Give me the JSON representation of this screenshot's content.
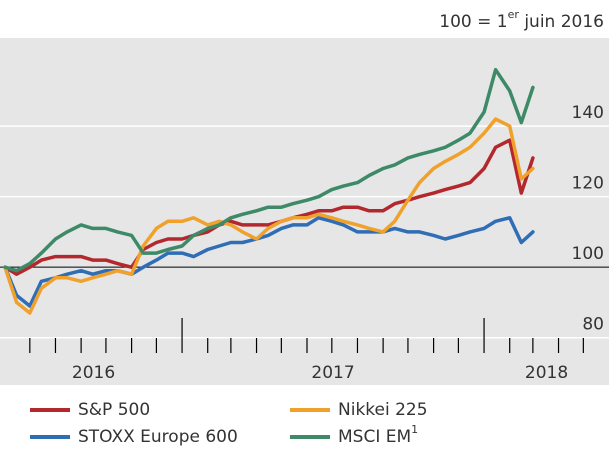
{
  "chart_data": {
    "type": "line",
    "note": [
      "100 = 1",
      "er",
      " juin 2016"
    ],
    "x": [
      "2016-06-01",
      "2016-06-15",
      "2016-07-01",
      "2016-07-15",
      "2016-08-01",
      "2016-08-15",
      "2016-09-01",
      "2016-09-15",
      "2016-10-01",
      "2016-10-15",
      "2016-11-01",
      "2016-11-15",
      "2016-12-01",
      "2016-12-15",
      "2017-01-01",
      "2017-01-15",
      "2017-02-01",
      "2017-02-15",
      "2017-03-01",
      "2017-03-15",
      "2017-04-01",
      "2017-04-15",
      "2017-05-01",
      "2017-05-15",
      "2017-06-01",
      "2017-06-15",
      "2017-07-01",
      "2017-07-15",
      "2017-08-01",
      "2017-08-15",
      "2017-09-01",
      "2017-09-15",
      "2017-10-01",
      "2017-10-15",
      "2017-11-01",
      "2017-11-15",
      "2017-12-01",
      "2017-12-15",
      "2018-01-01",
      "2018-01-15",
      "2018-02-01",
      "2018-02-15",
      "2018-03-01"
    ],
    "series": [
      {
        "name": "S&P 500",
        "color": "#b3282d",
        "values": [
          100,
          98,
          100,
          102,
          103,
          103,
          103,
          102,
          102,
          101,
          100,
          105,
          107,
          108,
          108,
          109,
          110,
          112,
          113,
          112,
          112,
          112,
          113,
          114,
          115,
          116,
          116,
          117,
          117,
          116,
          116,
          118,
          119,
          120,
          121,
          122,
          123,
          124,
          128,
          134,
          136,
          121,
          131
        ]
      },
      {
        "name": "STOXX Europe 600",
        "color": "#2f6db5",
        "values": [
          100,
          92,
          89,
          96,
          97,
          98,
          99,
          98,
          99,
          99,
          98,
          100,
          102,
          104,
          104,
          103,
          105,
          106,
          107,
          107,
          108,
          109,
          111,
          112,
          112,
          114,
          113,
          112,
          110,
          110,
          110,
          111,
          110,
          110,
          109,
          108,
          109,
          110,
          111,
          113,
          114,
          107,
          110
        ]
      },
      {
        "name": "Nikkei 225",
        "color": "#f0a12c",
        "values": [
          100,
          90,
          87,
          94,
          97,
          97,
          96,
          97,
          98,
          99,
          98,
          106,
          111,
          113,
          113,
          114,
          112,
          113,
          112,
          110,
          108,
          111,
          113,
          114,
          114,
          115,
          114,
          113,
          112,
          111,
          110,
          113,
          119,
          124,
          128,
          130,
          132,
          134,
          138,
          142,
          140,
          125,
          128
        ]
      },
      {
        "name": "MSCI EM",
        "name_sup": "1",
        "color": "#3e8a68",
        "values": [
          100,
          99,
          101,
          104,
          108,
          110,
          112,
          111,
          111,
          110,
          109,
          104,
          104,
          105,
          106,
          109,
          111,
          112,
          114,
          115,
          116,
          117,
          117,
          118,
          119,
          120,
          122,
          123,
          124,
          126,
          128,
          129,
          131,
          132,
          133,
          134,
          136,
          138,
          144,
          156,
          150,
          141,
          151
        ]
      }
    ],
    "xlim": [
      "2016-06-01",
      "2018-06-01"
    ],
    "xticks": [
      "2017-01-01",
      "2018-01-01"
    ],
    "xminor_ticks": [
      "2016-07-01",
      "2016-08-01",
      "2016-09-01",
      "2016-10-01",
      "2016-11-01",
      "2016-12-01",
      "2017-02-01",
      "2017-03-01",
      "2017-04-01",
      "2017-05-01",
      "2017-06-01",
      "2017-07-01",
      "2017-08-01",
      "2017-09-01",
      "2017-10-01",
      "2017-11-01",
      "2017-12-01",
      "2018-02-01",
      "2018-03-01",
      "2018-04-01",
      "2018-05-01"
    ],
    "xlabels": [
      "2016",
      "2017",
      "2018"
    ],
    "ylim": [
      68,
      165
    ],
    "yticks": [
      80,
      100,
      120,
      140
    ],
    "baseline": 100,
    "grid": true,
    "background": "#e6e6e6"
  }
}
